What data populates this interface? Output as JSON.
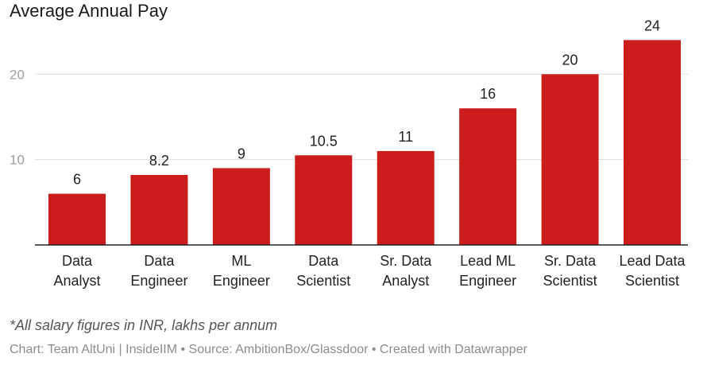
{
  "chart_data": {
    "type": "bar",
    "title": "Average Annual Pay",
    "categories": [
      [
        "Data",
        "Analyst"
      ],
      [
        "Data",
        "Engineer"
      ],
      [
        "ML",
        "Engineer"
      ],
      [
        "Data",
        "Scientist"
      ],
      [
        "Sr. Data",
        "Analyst"
      ],
      [
        "Lead ML",
        "Engineer"
      ],
      [
        "Sr. Data",
        "Scientist"
      ],
      [
        "Lead Data",
        "Scientist"
      ]
    ],
    "values": [
      6,
      8.2,
      9,
      10.5,
      11,
      16,
      20,
      24
    ],
    "value_labels": [
      "6",
      "8.2",
      "9",
      "10.5",
      "11",
      "16",
      "20",
      "24"
    ],
    "y_ticks": [
      10,
      20
    ],
    "ylim": [
      0,
      24
    ],
    "grid": true,
    "bar_color": "#cc1d1d"
  },
  "footer": {
    "note": "*All salary figures in INR, lakhs per annum",
    "credits": "Chart: Team AltUni | InsideIIM • Source: AmbitionBox/Glassdoor • Created with Datawrapper"
  }
}
